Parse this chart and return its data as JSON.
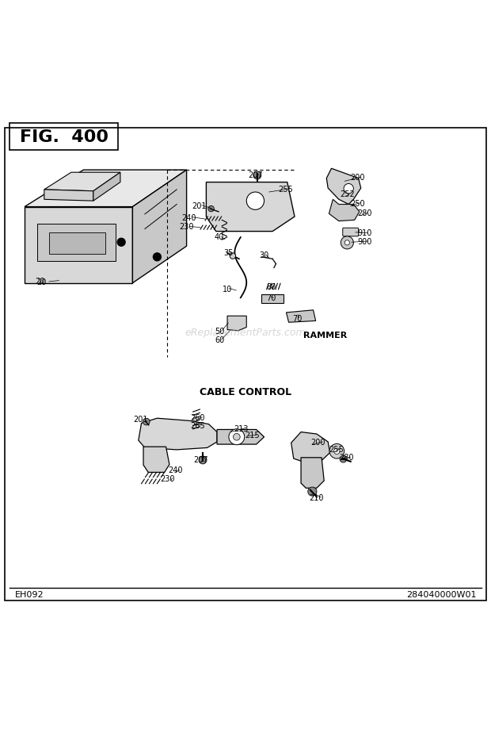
{
  "title": "FIG.  400",
  "bg_color": "#ffffff",
  "border_color": "#000000",
  "text_color": "#000000",
  "gray_color": "#888888",
  "light_gray": "#cccccc",
  "watermark": "eReplacementParts.com",
  "footer_left": "EH092",
  "footer_right": "284040000W01",
  "rammer_label": "RAMMER",
  "cable_label": "CABLE CONTROL"
}
